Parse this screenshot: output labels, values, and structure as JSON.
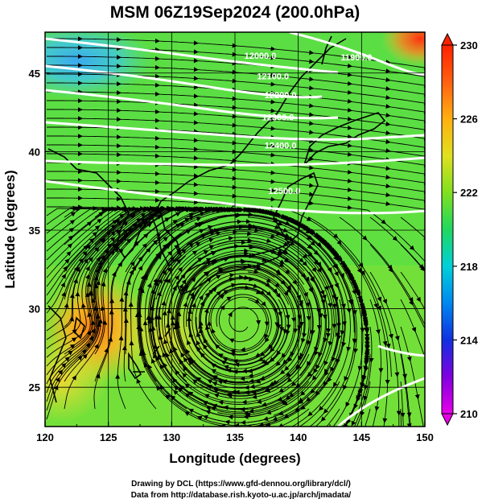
{
  "title": "MSM 06Z19Sep2024 (200.0hPa)",
  "x_axis": {
    "label": "Longitude (degrees)",
    "range": [
      120,
      150
    ],
    "ticks": [
      "120",
      "125",
      "130",
      "135",
      "140",
      "145",
      "150"
    ]
  },
  "y_axis": {
    "label": "Latitude  (degrees)",
    "range": [
      22.5,
      47.6
    ],
    "ticks": [
      "25",
      "30",
      "35",
      "40",
      "45"
    ]
  },
  "colorbar": {
    "range": [
      210,
      230
    ],
    "ticks": [
      "230",
      "226",
      "222",
      "218",
      "214",
      "210"
    ]
  },
  "contours": {
    "color": "#ffffff",
    "labels": [
      {
        "text": "12000.0",
        "lon": 137.0,
        "lat": 45.9
      },
      {
        "text": "11900.0",
        "lon": 144.6,
        "lat": 45.8
      },
      {
        "text": "12100.0",
        "lon": 138.0,
        "lat": 44.6
      },
      {
        "text": "12200.0",
        "lon": 138.6,
        "lat": 43.4
      },
      {
        "text": "12300.0",
        "lon": 138.4,
        "lat": 42.0
      },
      {
        "text": "12400.0",
        "lon": 138.6,
        "lat": 40.2
      },
      {
        "text": "12500.0",
        "lon": 138.9,
        "lat": 37.3
      }
    ]
  },
  "credits": {
    "line1": "Drawing by DCL (https://www.gfd-dennou.org/library/dcl/)",
    "line2": "Data from http://database.rish.kyoto-u.ac.jp/arch/jmadata/"
  },
  "chart_data": {
    "type": "heatmap",
    "title": "MSM 06Z19Sep2024 (200.0hPa)",
    "xlabel": "Longitude (degrees)",
    "ylabel": "Latitude  (degrees)",
    "xlim": [
      120,
      150
    ],
    "ylim": [
      22.5,
      47.6
    ],
    "colorscale_range": [
      210,
      230
    ],
    "field_points": [
      {
        "lon": 121,
        "lat": 46,
        "value": 218
      },
      {
        "lon": 124,
        "lat": 45,
        "value": 219
      },
      {
        "lon": 128,
        "lat": 44,
        "value": 221
      },
      {
        "lon": 135,
        "lat": 43,
        "value": 222
      },
      {
        "lon": 149,
        "lat": 47,
        "value": 229
      },
      {
        "lon": 123.5,
        "lat": 29.5,
        "value": 227
      },
      {
        "lon": 121,
        "lat": 27,
        "value": 226
      },
      {
        "lon": 128,
        "lat": 27,
        "value": 224
      },
      {
        "lon": 140,
        "lat": 30,
        "value": 223
      },
      {
        "lon": 145,
        "lat": 36,
        "value": 222
      }
    ],
    "contour_levels": [
      11900,
      12000,
      12100,
      12200,
      12300,
      12400,
      12500
    ]
  }
}
